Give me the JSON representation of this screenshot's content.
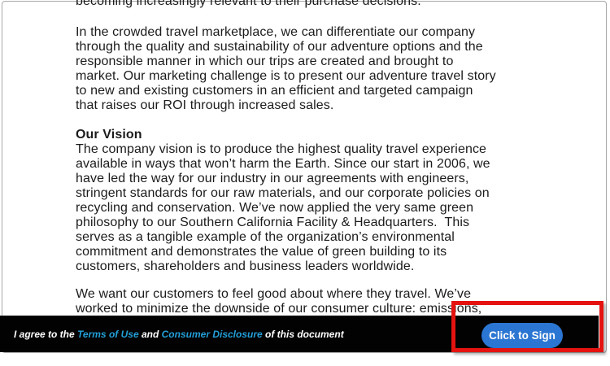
{
  "document": {
    "clipped_top_line": "becoming increasingly relevant to their purchase decisions.",
    "market_paragraph_lines": [
      "In the crowded travel marketplace, we can differentiate our company",
      "through the quality and sustainability of our adventure options and the",
      "responsible manner in which our trips are created and brought to",
      "market. Our marketing challenge is to present our adventure travel story",
      "to new and existing customers in an efficient and targeted campaign",
      "that raises our ROI through increased sales."
    ],
    "vision_heading": "Our Vision",
    "vision_paragraph_lines": [
      "The company vision is to produce the highest quality travel experience",
      "available in ways that won’t harm the Earth. Since our start in 2006, we",
      "have led the way for our industry in our agreements with engineers,",
      "stringent standards for our raw materials, and our corporate policies on",
      "recycling and conservation. We’ve now applied the very same green",
      "philosophy to our Southern California Facility & Headquarters.  This",
      "serves as a tangible example of the organization’s environmental",
      "commitment and demonstrates the value of green building to its",
      "customers, shareholders and business leaders worldwide."
    ],
    "closing_paragraph_lines": [
      "We want our customers to feel good about where they travel. We’ve",
      "worked to minimize the downside of our consumer culture: emissions,"
    ]
  },
  "agreement_bar": {
    "prefix": "I agree to the ",
    "terms_link": "Terms of Use",
    "middle": " and ",
    "disclosure_link": "Consumer Disclosure",
    "suffix": " of this document",
    "sign_button_label": "Click to Sign"
  },
  "colors": {
    "bar_background": "#020202",
    "link_blue": "#239fd8",
    "button_blue": "#2b76d2",
    "highlight_red": "#e41310"
  }
}
